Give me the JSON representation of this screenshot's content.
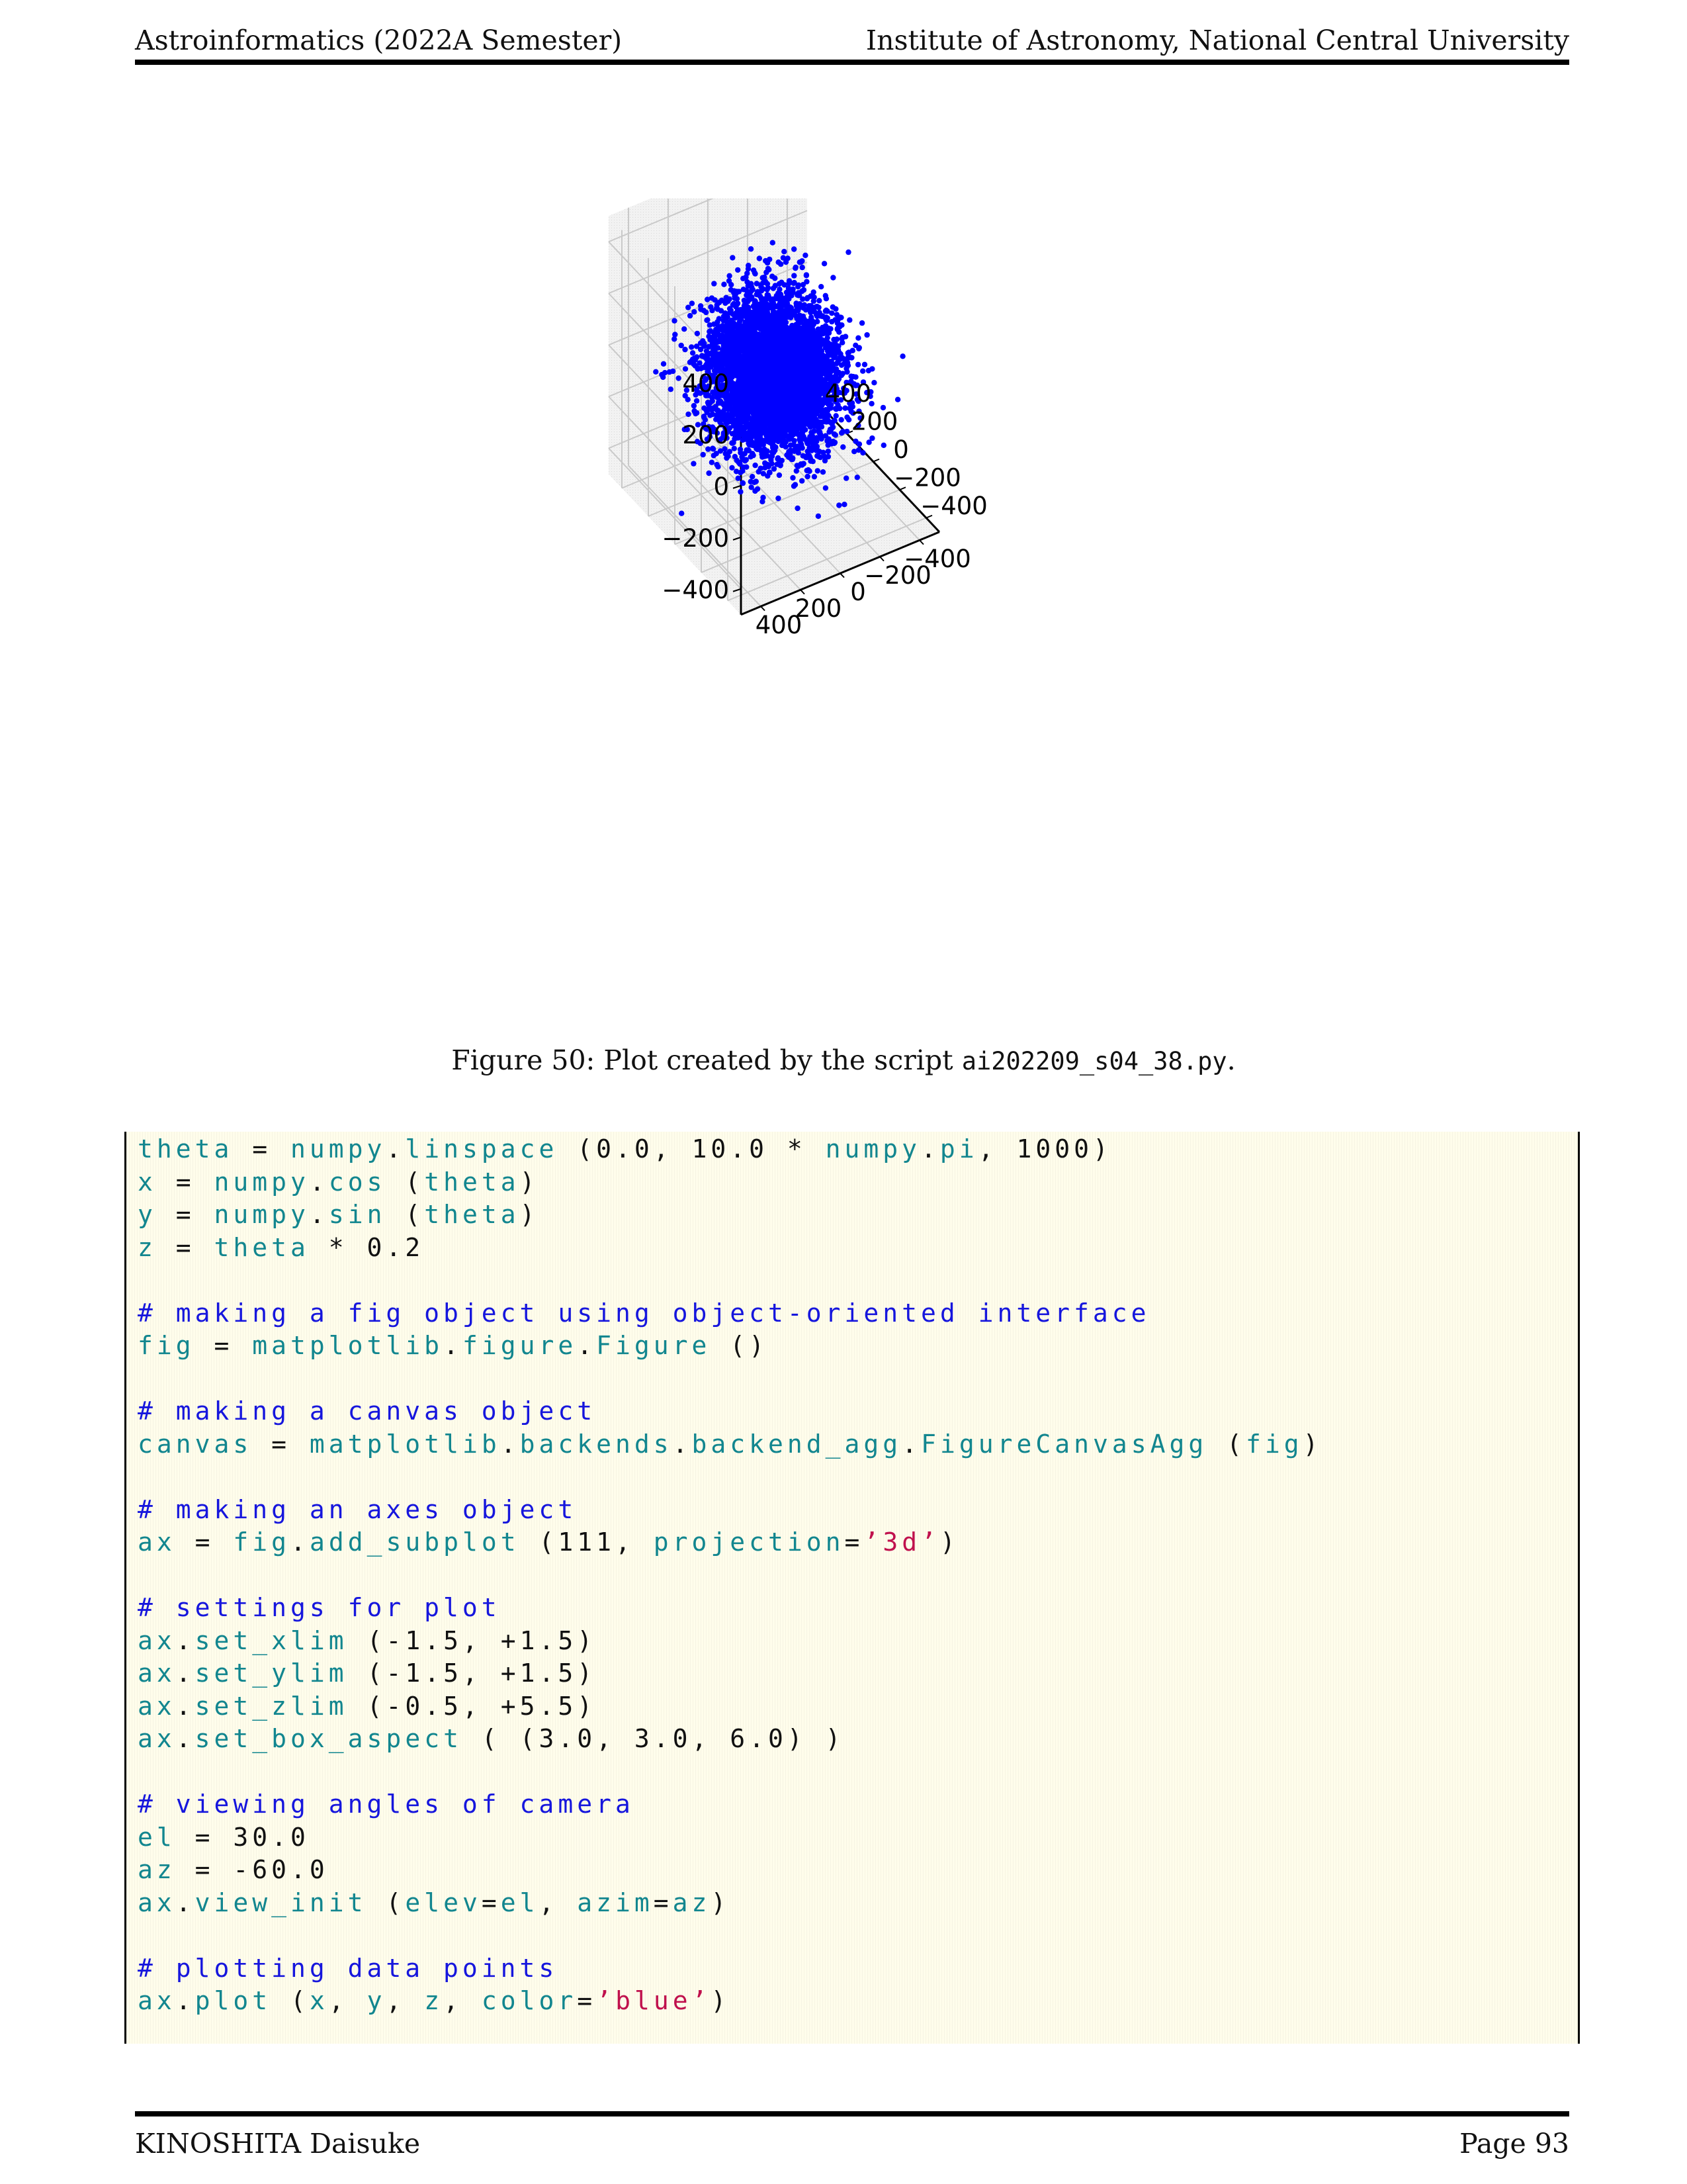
{
  "header": {
    "left": "Astroinformatics (2022A Semester)",
    "right": "Institute of Astronomy, National Central University"
  },
  "footer": {
    "left": "KINOSHITA Daisuke",
    "right": "Page 93"
  },
  "figure": {
    "caption_prefix": "Figure 50: Plot created by the script ",
    "caption_script": "ai202209_s04_38.py",
    "caption_suffix": "."
  },
  "chart_data": {
    "type": "scatter",
    "projection": "3d",
    "title": "",
    "marker_color": "#0000ff",
    "grid": true,
    "z_ticks": [
      "400",
      "200",
      "0",
      "−200",
      "−400"
    ],
    "x_ticks": [
      "−400",
      "−200",
      "0",
      "200",
      "400"
    ],
    "y_ticks": [
      "−400",
      "−200",
      "0",
      "200",
      "400"
    ],
    "xlim": [
      -500,
      500
    ],
    "ylim": [
      -500,
      500
    ],
    "zlim": [
      -500,
      500
    ],
    "distribution": "roughly spherical Gaussian cloud centred at origin, about 5000 points, spread approx 100 to 150 in each axis",
    "center": [
      0,
      0,
      0
    ]
  },
  "code": {
    "colors": {
      "identifier": "#12868f",
      "comment": "#1616dd",
      "string": "#c0114d",
      "plain": "#111111"
    },
    "lines": [
      [
        [
          "id",
          "theta"
        ],
        [
          "op",
          " = "
        ],
        [
          "id",
          "numpy"
        ],
        [
          "op",
          "."
        ],
        [
          "id",
          "linspace"
        ],
        [
          "op",
          " (0.0, 10.0 * "
        ],
        [
          "id",
          "numpy"
        ],
        [
          "op",
          "."
        ],
        [
          "id",
          "pi"
        ],
        [
          "op",
          ", 1000)"
        ]
      ],
      [
        [
          "id",
          "x"
        ],
        [
          "op",
          " = "
        ],
        [
          "id",
          "numpy"
        ],
        [
          "op",
          "."
        ],
        [
          "id",
          "cos"
        ],
        [
          "op",
          " ("
        ],
        [
          "id",
          "theta"
        ],
        [
          "op",
          ")"
        ]
      ],
      [
        [
          "id",
          "y"
        ],
        [
          "op",
          " = "
        ],
        [
          "id",
          "numpy"
        ],
        [
          "op",
          "."
        ],
        [
          "id",
          "sin"
        ],
        [
          "op",
          " ("
        ],
        [
          "id",
          "theta"
        ],
        [
          "op",
          ")"
        ]
      ],
      [
        [
          "id",
          "z"
        ],
        [
          "op",
          " = "
        ],
        [
          "id",
          "theta"
        ],
        [
          "op",
          " * 0.2"
        ]
      ],
      [],
      [
        [
          "com",
          "# making a fig object using object-oriented interface"
        ]
      ],
      [
        [
          "id",
          "fig"
        ],
        [
          "op",
          " = "
        ],
        [
          "id",
          "matplotlib"
        ],
        [
          "op",
          "."
        ],
        [
          "id",
          "figure"
        ],
        [
          "op",
          "."
        ],
        [
          "id",
          "Figure"
        ],
        [
          "op",
          " ()"
        ]
      ],
      [],
      [
        [
          "com",
          "# making a canvas object"
        ]
      ],
      [
        [
          "id",
          "canvas"
        ],
        [
          "op",
          " = "
        ],
        [
          "id",
          "matplotlib"
        ],
        [
          "op",
          "."
        ],
        [
          "id",
          "backends"
        ],
        [
          "op",
          "."
        ],
        [
          "id",
          "backend_agg"
        ],
        [
          "op",
          "."
        ],
        [
          "id",
          "FigureCanvasAgg"
        ],
        [
          "op",
          " ("
        ],
        [
          "id",
          "fig"
        ],
        [
          "op",
          ")"
        ]
      ],
      [],
      [
        [
          "com",
          "# making an axes object"
        ]
      ],
      [
        [
          "id",
          "ax"
        ],
        [
          "op",
          " = "
        ],
        [
          "id",
          "fig"
        ],
        [
          "op",
          "."
        ],
        [
          "id",
          "add_subplot"
        ],
        [
          "op",
          " (111, "
        ],
        [
          "id",
          "projection"
        ],
        [
          "op",
          "="
        ],
        [
          "str",
          "’3d’"
        ],
        [
          "op",
          ")"
        ]
      ],
      [],
      [
        [
          "com",
          "# settings for plot"
        ]
      ],
      [
        [
          "id",
          "ax"
        ],
        [
          "op",
          "."
        ],
        [
          "id",
          "set_xlim"
        ],
        [
          "op",
          " (-1.5, +1.5)"
        ]
      ],
      [
        [
          "id",
          "ax"
        ],
        [
          "op",
          "."
        ],
        [
          "id",
          "set_ylim"
        ],
        [
          "op",
          " (-1.5, +1.5)"
        ]
      ],
      [
        [
          "id",
          "ax"
        ],
        [
          "op",
          "."
        ],
        [
          "id",
          "set_zlim"
        ],
        [
          "op",
          " (-0.5, +5.5)"
        ]
      ],
      [
        [
          "id",
          "ax"
        ],
        [
          "op",
          "."
        ],
        [
          "id",
          "set_box_aspect"
        ],
        [
          "op",
          " ( (3.0, 3.0, 6.0) )"
        ]
      ],
      [],
      [
        [
          "com",
          "# viewing angles of camera"
        ]
      ],
      [
        [
          "id",
          "el"
        ],
        [
          "op",
          " = 30.0"
        ]
      ],
      [
        [
          "id",
          "az"
        ],
        [
          "op",
          " = -60.0"
        ]
      ],
      [
        [
          "id",
          "ax"
        ],
        [
          "op",
          "."
        ],
        [
          "id",
          "view_init"
        ],
        [
          "op",
          " ("
        ],
        [
          "id",
          "elev"
        ],
        [
          "op",
          "="
        ],
        [
          "id",
          "el"
        ],
        [
          "op",
          ", "
        ],
        [
          "id",
          "azim"
        ],
        [
          "op",
          "="
        ],
        [
          "id",
          "az"
        ],
        [
          "op",
          ")"
        ]
      ],
      [],
      [
        [
          "com",
          "# plotting data points"
        ]
      ],
      [
        [
          "id",
          "ax"
        ],
        [
          "op",
          "."
        ],
        [
          "id",
          "plot"
        ],
        [
          "op",
          " ("
        ],
        [
          "id",
          "x"
        ],
        [
          "op",
          ", "
        ],
        [
          "id",
          "y"
        ],
        [
          "op",
          ", "
        ],
        [
          "id",
          "z"
        ],
        [
          "op",
          ", "
        ],
        [
          "id",
          "color"
        ],
        [
          "op",
          "="
        ],
        [
          "str",
          "’blue’"
        ],
        [
          "op",
          ")"
        ]
      ]
    ]
  }
}
